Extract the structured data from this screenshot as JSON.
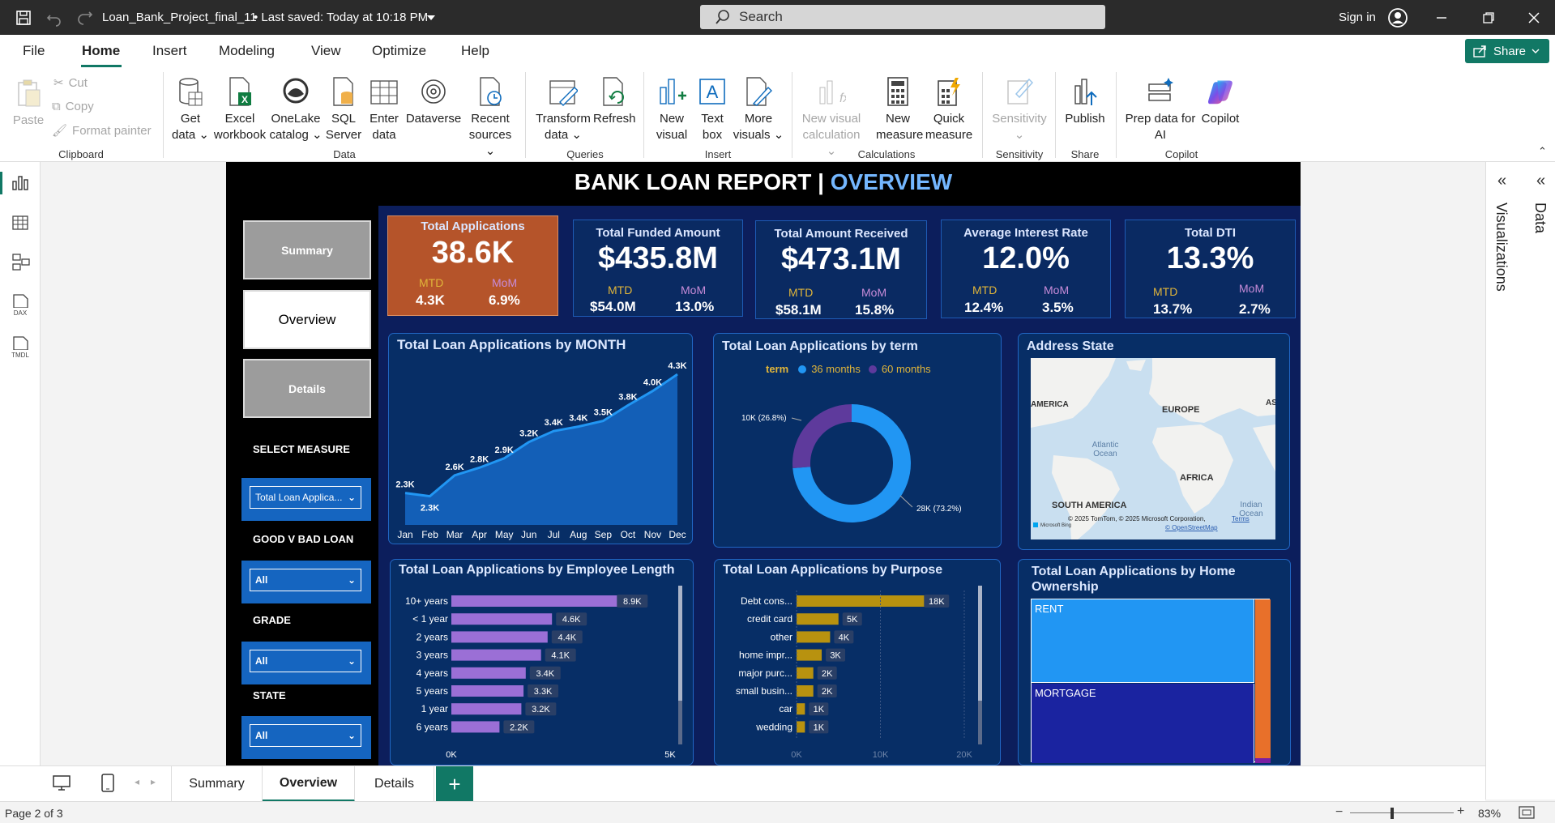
{
  "titlebar": {
    "file_name": "Loan_Bank_Project_final_11",
    "saved_status": "• Last saved: Today at 10:18 PM",
    "search_placeholder": "Search",
    "sign_in": "Sign in"
  },
  "menu": {
    "items": [
      "File",
      "Home",
      "Insert",
      "Modeling",
      "View",
      "Optimize",
      "Help"
    ],
    "active": "Home",
    "share": "Share"
  },
  "ribbon": {
    "clipboard": {
      "paste": "Paste",
      "cut": "Cut",
      "copy": "Copy",
      "format_painter": "Format painter",
      "group": "Clipboard"
    },
    "data": {
      "get_data": [
        "Get",
        "data"
      ],
      "excel": [
        "Excel",
        "workbook"
      ],
      "onelake": [
        "OneLake",
        "catalog"
      ],
      "sql": [
        "SQL",
        "Server"
      ],
      "enter": [
        "Enter",
        "data"
      ],
      "dataverse": "Dataverse",
      "recent": [
        "Recent",
        "sources"
      ],
      "group": "Data"
    },
    "queries": {
      "transform": [
        "Transform",
        "data"
      ],
      "refresh": "Refresh",
      "group": "Queries"
    },
    "insert": {
      "new_visual": [
        "New",
        "visual"
      ],
      "text_box": [
        "Text",
        "box"
      ],
      "more_visuals": [
        "More",
        "visuals"
      ],
      "group": "Insert"
    },
    "calculations": {
      "new_visual_calc": [
        "New visual",
        "calculation"
      ],
      "new_measure": [
        "New",
        "measure"
      ],
      "quick_measure": [
        "Quick",
        "measure"
      ],
      "group": "Calculations"
    },
    "sensitivity": {
      "label": "Sensitivity",
      "group": "Sensitivity"
    },
    "share": {
      "publish": "Publish",
      "group": "Share"
    },
    "copilot": {
      "prep": [
        "Prep data for",
        "AI"
      ],
      "copilot": "Copilot",
      "group": "Copilot"
    }
  },
  "right_panes": {
    "visualizations": "Visualizations",
    "data": "Data"
  },
  "page_tabs": [
    "Summary",
    "Overview",
    "Details"
  ],
  "active_tab": "Overview",
  "status": {
    "page": "Page 2 of 3",
    "zoom": "83%"
  },
  "report": {
    "title_main": "BANK LOAN REPORT | ",
    "title_accent": "OVERVIEW",
    "nav": {
      "summary": "Summary",
      "overview": "Overview",
      "details": "Details"
    },
    "slicers": {
      "select_measure": {
        "label": "SELECT MEASURE",
        "value": "Total Loan Applica..."
      },
      "good_bad": {
        "label": "GOOD V BAD LOAN",
        "value": "All"
      },
      "grade": {
        "label": "GRADE",
        "value": "All"
      },
      "state": {
        "label": "STATE",
        "value": "All"
      }
    },
    "kpis": [
      {
        "title": "Total Applications",
        "value": "38.6K",
        "mtd_label": "MTD",
        "mtd": "4.3K",
        "mom_label": "MoM",
        "mom": "6.9%"
      },
      {
        "title": "Total Funded Amount",
        "value": "$435.8M",
        "mtd_label": "MTD",
        "mtd": "$54.0M",
        "mom_label": "MoM",
        "mom": "13.0%"
      },
      {
        "title": "Total Amount Received",
        "value": "$473.1M",
        "mtd_label": "MTD",
        "mtd": "$58.1M",
        "mom_label": "MoM",
        "mom": "15.8%"
      },
      {
        "title": "Average Interest Rate",
        "value": "12.0%",
        "mtd_label": "MTD",
        "mtd": "12.4%",
        "mom_label": "MoM",
        "mom": "3.5%"
      },
      {
        "title": "Total DTI",
        "value": "13.3%",
        "mtd_label": "MTD",
        "mtd": "13.7%",
        "mom_label": "MoM",
        "mom": "2.7%"
      }
    ],
    "map": {
      "title": "Address State",
      "labels": [
        "AMERICA",
        "EUROPE",
        "AS",
        "Atlantic Ocean",
        "AFRICA",
        "SOUTH AMERICA",
        "Indian Ocean"
      ],
      "attribution": "© 2025 TomTom, © 2025 Microsoft Corporation,",
      "terms": "Terms",
      "osm": "© OpenStreetMap",
      "logo": "Microsoft Bing"
    },
    "treemap": {
      "title": "Total Loan Applications by Home Ownership",
      "items": [
        {
          "label": "RENT",
          "color": "#2196f3"
        },
        {
          "label": "MORTGAGE",
          "color": "#1a23a0"
        },
        {
          "label": "",
          "color": "#e8702a"
        }
      ]
    }
  },
  "chart_data": [
    {
      "type": "area",
      "title": "Total Loan Applications by MONTH",
      "categories": [
        "Jan",
        "Feb",
        "Mar",
        "Apr",
        "May",
        "Jun",
        "Jul",
        "Aug",
        "Sep",
        "Oct",
        "Nov",
        "Dec"
      ],
      "values": [
        2332,
        2279,
        2627,
        2755,
        2911,
        3184,
        3366,
        3441,
        3536,
        3796,
        4035,
        4314
      ],
      "data_labels": [
        "2.3K",
        "2.3K",
        "2.6K",
        "2.8K",
        "2.9K",
        "3.2K",
        "3.4K",
        "3.4K",
        "3.5K",
        "3.8K",
        "4.0K",
        "4.3K"
      ],
      "color": "#1565c0"
    },
    {
      "type": "pie",
      "title": "Total Loan Applications by term",
      "legend_title": "term",
      "legend_position": "top",
      "labels": [
        "36 months",
        "60 months"
      ],
      "values": [
        28000,
        10000
      ],
      "data_labels": [
        "28K (73.2%)",
        "10K (26.8%)"
      ],
      "colors": [
        "#2196f3",
        "#5e3a9c"
      ]
    },
    {
      "type": "bar",
      "title": "Total Loan Applications by Employee Length",
      "categories": [
        "10+ years",
        "< 1 year",
        "2 years",
        "3 years",
        "4 years",
        "5 years",
        "1 year",
        "6 years"
      ],
      "values": [
        8900,
        4600,
        4400,
        4100,
        3400,
        3300,
        3200,
        2200
      ],
      "data_labels": [
        "8.9K",
        "4.6K",
        "4.4K",
        "4.1K",
        "3.4K",
        "3.3K",
        "3.2K",
        "2.2K"
      ],
      "x_ticks": [
        "0K",
        "5K"
      ],
      "xlim": [
        0,
        10000
      ],
      "color": "#9b6fd6"
    },
    {
      "type": "bar",
      "title": "Total Loan Applications by Purpose",
      "categories": [
        "Debt cons...",
        "credit card",
        "other",
        "home impr...",
        "major purc...",
        "small busin...",
        "car",
        "wedding"
      ],
      "values": [
        18000,
        5000,
        4000,
        3000,
        2000,
        2000,
        1000,
        1000
      ],
      "data_labels": [
        "18K",
        "5K",
        "4K",
        "3K",
        "2K",
        "2K",
        "1K",
        "1K"
      ],
      "x_ticks": [
        "0K",
        "10K",
        "20K"
      ],
      "xlim": [
        0,
        20000
      ],
      "color": "#b8920f"
    }
  ]
}
